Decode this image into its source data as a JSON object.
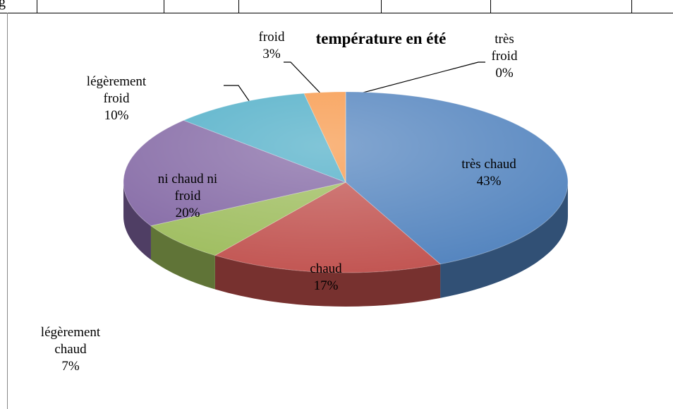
{
  "top_row_text": "g",
  "chart_data": {
    "type": "pie",
    "title": "température en été",
    "categories": [
      "très chaud",
      "chaud",
      "légèrement chaud",
      "ni chaud ni froid",
      "légèrement froid",
      "froid",
      "très froid"
    ],
    "values": [
      43,
      17,
      7,
      20,
      10,
      3,
      0
    ],
    "value_labels": [
      "43%",
      "17%",
      "7%",
      "20%",
      "10%",
      "3%",
      "0%"
    ],
    "colors": [
      "#4f81bd",
      "#c0504d",
      "#9bbb59",
      "#8064a2",
      "#4bacc6",
      "#f79646",
      "#2c4d75"
    ]
  }
}
